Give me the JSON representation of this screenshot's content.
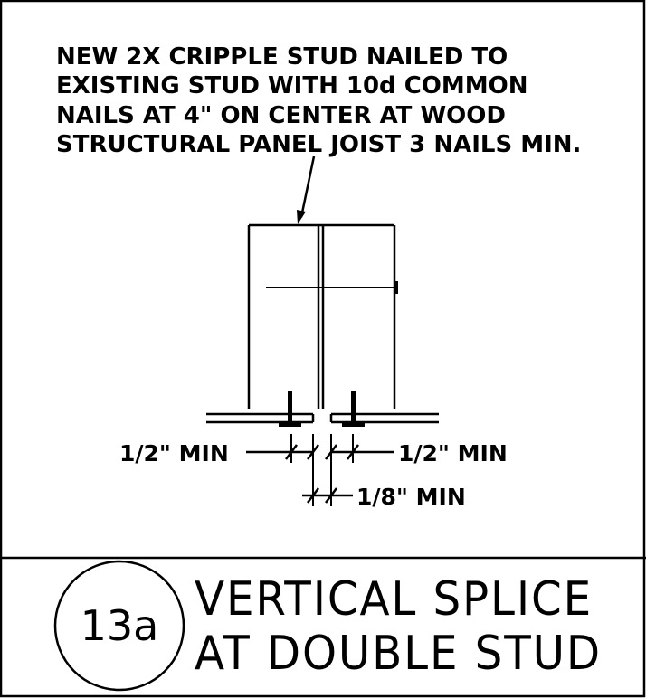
{
  "detail": {
    "callout_lines": [
      "NEW 2X CRIPPLE STUD NAILED TO",
      "EXISTING STUD WITH 10d COMMON",
      "NAILS AT 4\" ON CENTER AT WOOD",
      "STRUCTURAL PANEL JOIST 3 NAILS MIN."
    ],
    "dim_left": "1/2\" MIN",
    "dim_right": "1/2\" MIN",
    "dim_gap": "1/8\" MIN"
  },
  "title_block": {
    "detail_number": "13a",
    "title_line1": "VERTICAL SPLICE",
    "title_line2": "AT DOUBLE STUD"
  }
}
